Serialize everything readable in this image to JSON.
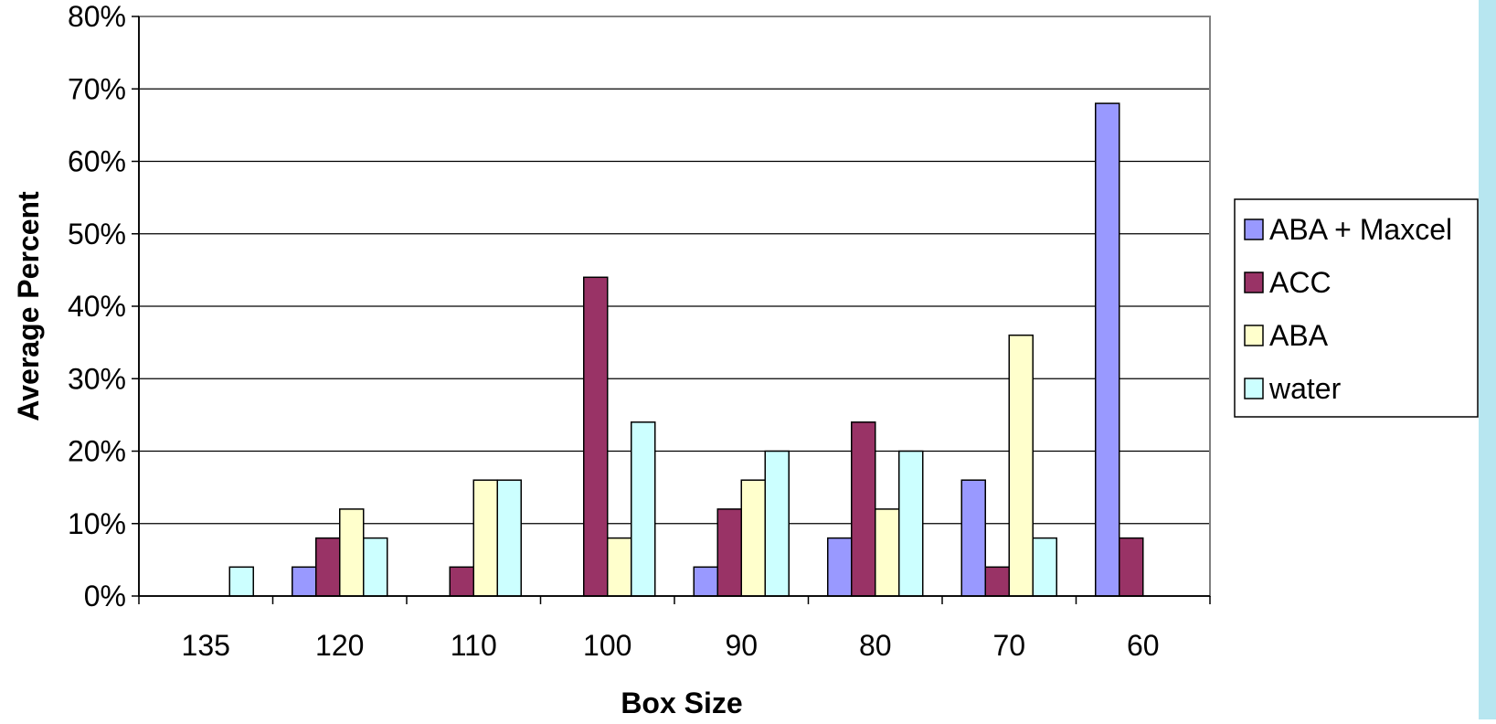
{
  "chart_data": {
    "type": "bar",
    "xlabel": "Box Size",
    "ylabel": "Average Percent",
    "categories": [
      "135",
      "120",
      "110",
      "100",
      "90",
      "80",
      "70",
      "60"
    ],
    "ylim": [
      0,
      80
    ],
    "yticks": [
      "0%",
      "10%",
      "20%",
      "30%",
      "40%",
      "50%",
      "60%",
      "70%",
      "80%"
    ],
    "grid": true,
    "legend_position": "right",
    "series": [
      {
        "name": "ABA + Maxcel",
        "color": "#9999ff",
        "values": [
          0,
          4,
          0,
          0,
          4,
          8,
          16,
          68
        ]
      },
      {
        "name": "ACC",
        "color": "#993366",
        "values": [
          0,
          8,
          4,
          44,
          12,
          24,
          4,
          8
        ]
      },
      {
        "name": "ABA",
        "color": "#ffffcc",
        "values": [
          0,
          12,
          16,
          8,
          16,
          12,
          36,
          0
        ]
      },
      {
        "name": "water",
        "color": "#ccffff",
        "values": [
          4,
          8,
          16,
          24,
          20,
          20,
          8,
          0
        ]
      }
    ]
  },
  "decor": {
    "right_band_color": "#b7e6f0"
  }
}
